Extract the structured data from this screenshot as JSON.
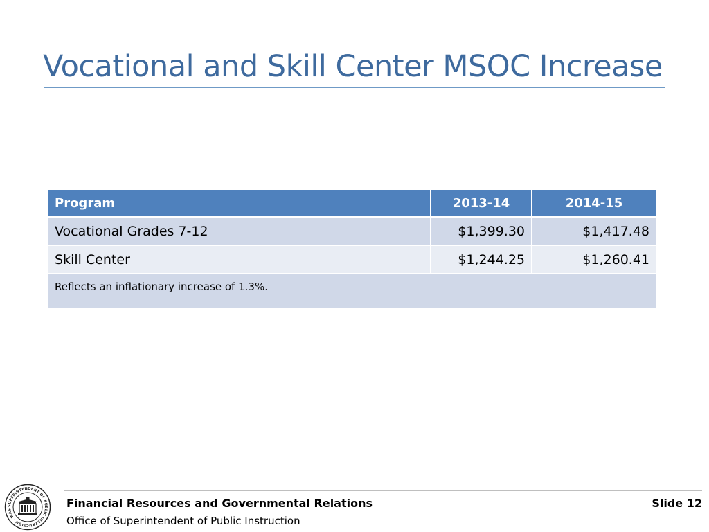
{
  "slide": {
    "title": "Vocational and Skill Center MSOC Increase",
    "accent_color": "#4f81bd",
    "title_color": "#3e6a9e"
  },
  "table": {
    "headers": [
      "Program",
      "2013-14",
      "2014-15"
    ],
    "rows": [
      {
        "program": "Vocational Grades 7-12",
        "y2013_14": "$1,399.30",
        "y2014_15": "$1,417.48"
      },
      {
        "program": "Skill Center",
        "y2013_14": "$1,244.25",
        "y2014_15": "$1,260.41"
      }
    ],
    "note": "Reflects an inflationary increase of 1.3%."
  },
  "footer": {
    "org": "Financial Resources and Governmental Relations",
    "office": "Office of Superintendent of Public Instruction",
    "slide_label": "Slide 12",
    "seal_text": "SUPERINTENDENT OF PUBLIC INSTRUCTION · WASHINGTON ·",
    "seal_icon": "capitol-building-icon"
  }
}
